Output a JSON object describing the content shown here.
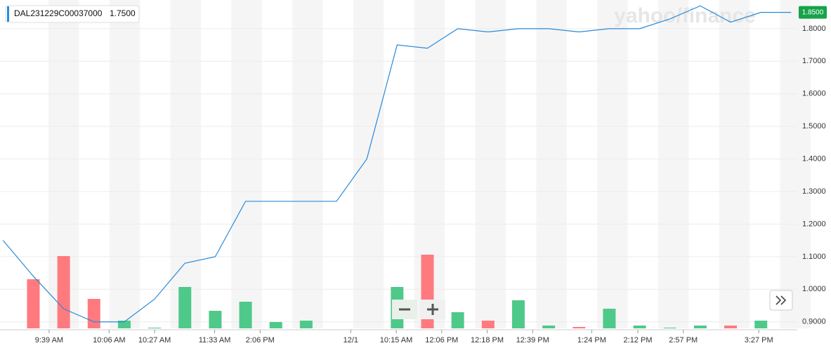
{
  "chart_data": {
    "type": "line",
    "watermark": "yahoo/finance",
    "x": [
      0,
      1,
      2,
      3,
      4,
      5,
      6,
      7,
      8,
      9,
      10,
      11,
      12,
      13,
      14,
      15,
      16,
      17,
      18,
      19,
      20,
      21,
      22,
      23,
      24,
      25,
      26
    ],
    "xlim": [
      -0.1,
      26.2
    ],
    "xticks": [
      {
        "value": 1.52,
        "label": "9:39 AM"
      },
      {
        "value": 3.5,
        "label": "10:06 AM"
      },
      {
        "value": 5.0,
        "label": "10:27 AM"
      },
      {
        "value": 6.98,
        "label": "11:33 AM"
      },
      {
        "value": 8.48,
        "label": "2:06 PM"
      },
      {
        "value": 11.47,
        "label": "12/1"
      },
      {
        "value": 12.97,
        "label": "10:15 AM"
      },
      {
        "value": 14.47,
        "label": "12:06 PM"
      },
      {
        "value": 15.97,
        "label": "12:18 PM"
      },
      {
        "value": 17.47,
        "label": "12:39 PM"
      },
      {
        "value": 19.42,
        "label": "1:24 PM"
      },
      {
        "value": 20.94,
        "label": "2:12 PM"
      },
      {
        "value": 22.44,
        "label": "2:57 PM"
      },
      {
        "value": 24.93,
        "label": "3:27 PM"
      }
    ],
    "ylim": [
      0.88,
      1.888
    ],
    "yticks": [
      {
        "value": 0.9,
        "label": "0.9000"
      },
      {
        "value": 1.0,
        "label": "1.0000"
      },
      {
        "value": 1.1,
        "label": "1.1000"
      },
      {
        "value": 1.2,
        "label": "1.2000"
      },
      {
        "value": 1.3,
        "label": "1.3000"
      },
      {
        "value": 1.4,
        "label": "1.4000"
      },
      {
        "value": 1.5,
        "label": "1.5000"
      },
      {
        "value": 1.6,
        "label": "1.6000"
      },
      {
        "value": 1.7,
        "label": "1.7000"
      },
      {
        "value": 1.8,
        "label": "1.8000"
      }
    ],
    "grid": true,
    "series": [
      {
        "name": "DAL231229C00037000",
        "color": "#2a8ad8",
        "values": [
          1.15,
          1.04,
          0.94,
          0.9,
          0.9,
          0.97,
          1.08,
          1.1,
          1.27,
          1.27,
          1.27,
          1.27,
          1.4,
          1.75,
          1.74,
          1.8,
          1.79,
          1.8,
          1.8,
          1.79,
          1.8,
          1.8,
          1.83,
          1.87,
          1.82,
          1.85,
          1.85
        ]
      }
    ],
    "legend_value": "1.7500",
    "last_price": {
      "value": 1.85,
      "label": "1.8500",
      "color": "#16a34a"
    },
    "volume": {
      "values": [
        null,
        70,
        103,
        42,
        11,
        1,
        59,
        25,
        38,
        9,
        11,
        null,
        null,
        59,
        105,
        23,
        11,
        40,
        4,
        2,
        28,
        4,
        1,
        4,
        4,
        11,
        null
      ],
      "colors": [
        null,
        "#ff7a7f",
        "#ff7a7f",
        "#ff7a7f",
        "#4fc98a",
        "#4fc98a",
        "#4fc98a",
        "#4fc98a",
        "#4fc98a",
        "#4fc98a",
        "#4fc98a",
        null,
        null,
        "#4fc98a",
        "#ff7a7f",
        "#4fc98a",
        "#ff7a7f",
        "#4fc98a",
        "#4fc98a",
        "#ff7a7f",
        "#4fc98a",
        "#4fc98a",
        "#4fc98a",
        "#4fc98a",
        "#ff7a7f",
        "#4fc98a",
        null
      ]
    }
  }
}
